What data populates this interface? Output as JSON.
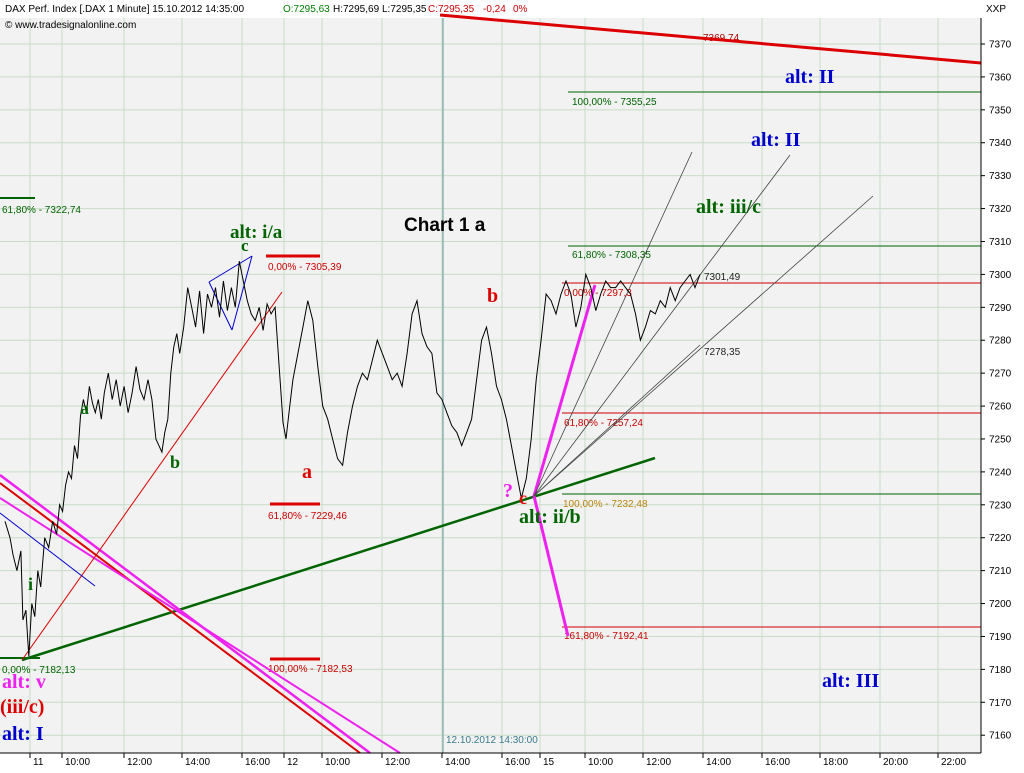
{
  "header": {
    "title": "DAX Perf. Index [.DAX  1 Minute] 15.10.2012 14:35:00",
    "open": "O:7295,63",
    "high": "H:7295,69",
    "low": "L:7295,35",
    "close": "C:7295,35",
    "change": "-0,24",
    "change_pct": "0%",
    "source": "© www.tradesignalonline.com",
    "exchange": "XXP"
  },
  "colors": {
    "background": "#f2f2f2",
    "price_line": "#000000",
    "green": "#006400",
    "red": "#dd0000",
    "magenta": "#ee22ee",
    "blue": "#0000cc",
    "grid": "#c8dcc8"
  },
  "x_axis": {
    "ticks": [
      "11",
      "10:00",
      "12:00",
      "14:00",
      "16:00",
      "12",
      "10:00",
      "12:00",
      "14:00",
      "16:00",
      "15",
      "10:00",
      "12:00",
      "14:00",
      "16:00",
      "18:00",
      "20:00",
      "22:00"
    ],
    "marker": "12.10.2012 14:30:00"
  },
  "chart_data": {
    "type": "line",
    "title": "Chart 1 a",
    "xlabel": "",
    "ylabel": "",
    "ylim": [
      7155,
      7385
    ],
    "y_ticks": [
      7160,
      7170,
      7180,
      7190,
      7200,
      7210,
      7220,
      7230,
      7240,
      7250,
      7260,
      7270,
      7280,
      7290,
      7300,
      7310,
      7320,
      7330,
      7340,
      7350,
      7360,
      7370
    ],
    "y_tick_labels": [
      "7160",
      "7170",
      "7180",
      "7190",
      "7200",
      "7210",
      "7220",
      "7230",
      "7240",
      "7250",
      "7260",
      "7270",
      "7280",
      "7290",
      "7300",
      "7310",
      "7320",
      "7330",
      "7340",
      "7350",
      "7360",
      "7370"
    ],
    "series": [
      {
        "x": [
          0,
          5,
          8,
          12,
          16,
          18,
          21,
          24,
          27,
          30,
          33,
          36,
          40,
          44,
          48,
          52,
          55,
          58,
          61,
          64,
          67,
          70,
          73,
          76,
          79,
          82,
          85,
          88,
          91,
          94,
          97,
          100,
          104,
          108,
          112,
          116,
          120,
          124,
          128,
          132,
          136,
          140,
          144,
          148,
          152,
          155,
          158,
          161,
          164,
          167,
          170,
          173,
          176,
          180,
          184,
          188,
          192,
          196,
          200,
          204,
          208,
          212,
          216,
          220,
          224,
          228,
          232,
          236,
          240,
          244,
          248,
          252,
          256,
          260,
          264,
          268,
          272,
          280,
          283,
          286,
          290,
          295,
          300,
          305,
          310,
          315,
          320,
          325,
          330,
          335,
          340,
          345,
          350,
          355,
          360,
          365,
          370,
          375,
          380,
          385,
          390,
          395,
          400,
          405,
          410,
          415,
          420,
          425,
          430,
          435,
          440,
          445,
          450,
          455,
          460,
          465,
          470,
          475,
          480,
          485,
          490,
          495,
          500,
          505,
          510,
          515,
          520,
          525,
          530,
          535,
          540,
          545,
          550,
          555,
          560,
          565,
          570,
          575,
          580,
          585,
          590,
          595,
          600,
          605,
          610,
          615,
          620,
          625,
          630,
          635,
          640,
          645,
          650,
          655,
          660,
          665,
          670,
          675,
          680,
          685,
          690,
          695,
          700
        ],
        "y": [
          7225,
          7220,
          7215,
          7210,
          7216,
          7195,
          7198,
          7184,
          7200,
          7196,
          7210,
          7205,
          7220,
          7217,
          7225,
          7221,
          7230,
          7228,
          7236,
          7240,
          7238,
          7248,
          7244,
          7257,
          7262,
          7258,
          7266,
          7261,
          7258,
          7262,
          7256,
          7264,
          7270,
          7262,
          7268,
          7260,
          7266,
          7258,
          7264,
          7272,
          7265,
          7262,
          7268,
          7262,
          7250,
          7248,
          7246,
          7252,
          7256,
          7270,
          7278,
          7282,
          7276,
          7284,
          7296,
          7290,
          7284,
          7295,
          7282,
          7294,
          7290,
          7296,
          7287,
          7298,
          7289,
          7296,
          7290,
          7304,
          7298,
          7292,
          7288,
          7286,
          7290,
          7283,
          7291,
          7288,
          7290,
          7255,
          7250,
          7258,
          7268,
          7276,
          7284,
          7292,
          7286,
          7272,
          7260,
          7256,
          7250,
          7244,
          7242,
          7252,
          7260,
          7266,
          7270,
          7268,
          7274,
          7280,
          7276,
          7272,
          7268,
          7270,
          7266,
          7276,
          7288,
          7292,
          7282,
          7278,
          7276,
          7264,
          7262,
          7258,
          7254,
          7252,
          7248,
          7252,
          7256,
          7268,
          7280,
          7284,
          7276,
          7266,
          7262,
          7256,
          7248,
          7240,
          7232,
          7238,
          7250,
          7268,
          7280,
          7294,
          7292,
          7288,
          7294,
          7298,
          7294,
          7284,
          7290,
          7300,
          7296,
          7289,
          7294,
          7298,
          7296,
          7296,
          7298,
          7296,
          7294,
          7288,
          7280,
          7284,
          7289,
          7288,
          7292,
          7290,
          7296,
          7292,
          7296,
          7298,
          7300,
          7296,
          7300
        ]
      }
    ],
    "levels": [
      {
        "label": "7369,74"
      },
      {
        "label": "100,00% - 7355,25"
      },
      {
        "label": "61,80% - 7322,74"
      },
      {
        "label": "61,80% - 7308,35"
      },
      {
        "label": "0,00% - 7305,39"
      },
      {
        "label": "7301,49"
      },
      {
        "label": "0,00% - 7297,3"
      },
      {
        "label": "7278,35"
      },
      {
        "label": "61,80% - 7257,24"
      },
      {
        "label": "100,00% - 7232,48"
      },
      {
        "label": "61,80% - 7229,46"
      },
      {
        "label": "161,80% - 7192,41"
      },
      {
        "label": "0,00% - 7182,13"
      },
      {
        "label": "100,00% - 7182,53"
      }
    ],
    "annotations": [
      {
        "text": "Chart 1 a"
      },
      {
        "text": "alt: i/a"
      },
      {
        "text": "c"
      },
      {
        "text": "a"
      },
      {
        "text": "b"
      },
      {
        "text": "i"
      },
      {
        "text": "a"
      },
      {
        "text": "b"
      },
      {
        "text": "?"
      },
      {
        "text": "c"
      },
      {
        "text": "alt: ii/b"
      },
      {
        "text": "alt: iii/c"
      },
      {
        "text": "alt: II"
      },
      {
        "text": "alt: II"
      },
      {
        "text": "alt: III"
      },
      {
        "text": "alt: v"
      },
      {
        "text": "(iii/c)"
      },
      {
        "text": "alt: I"
      }
    ]
  }
}
